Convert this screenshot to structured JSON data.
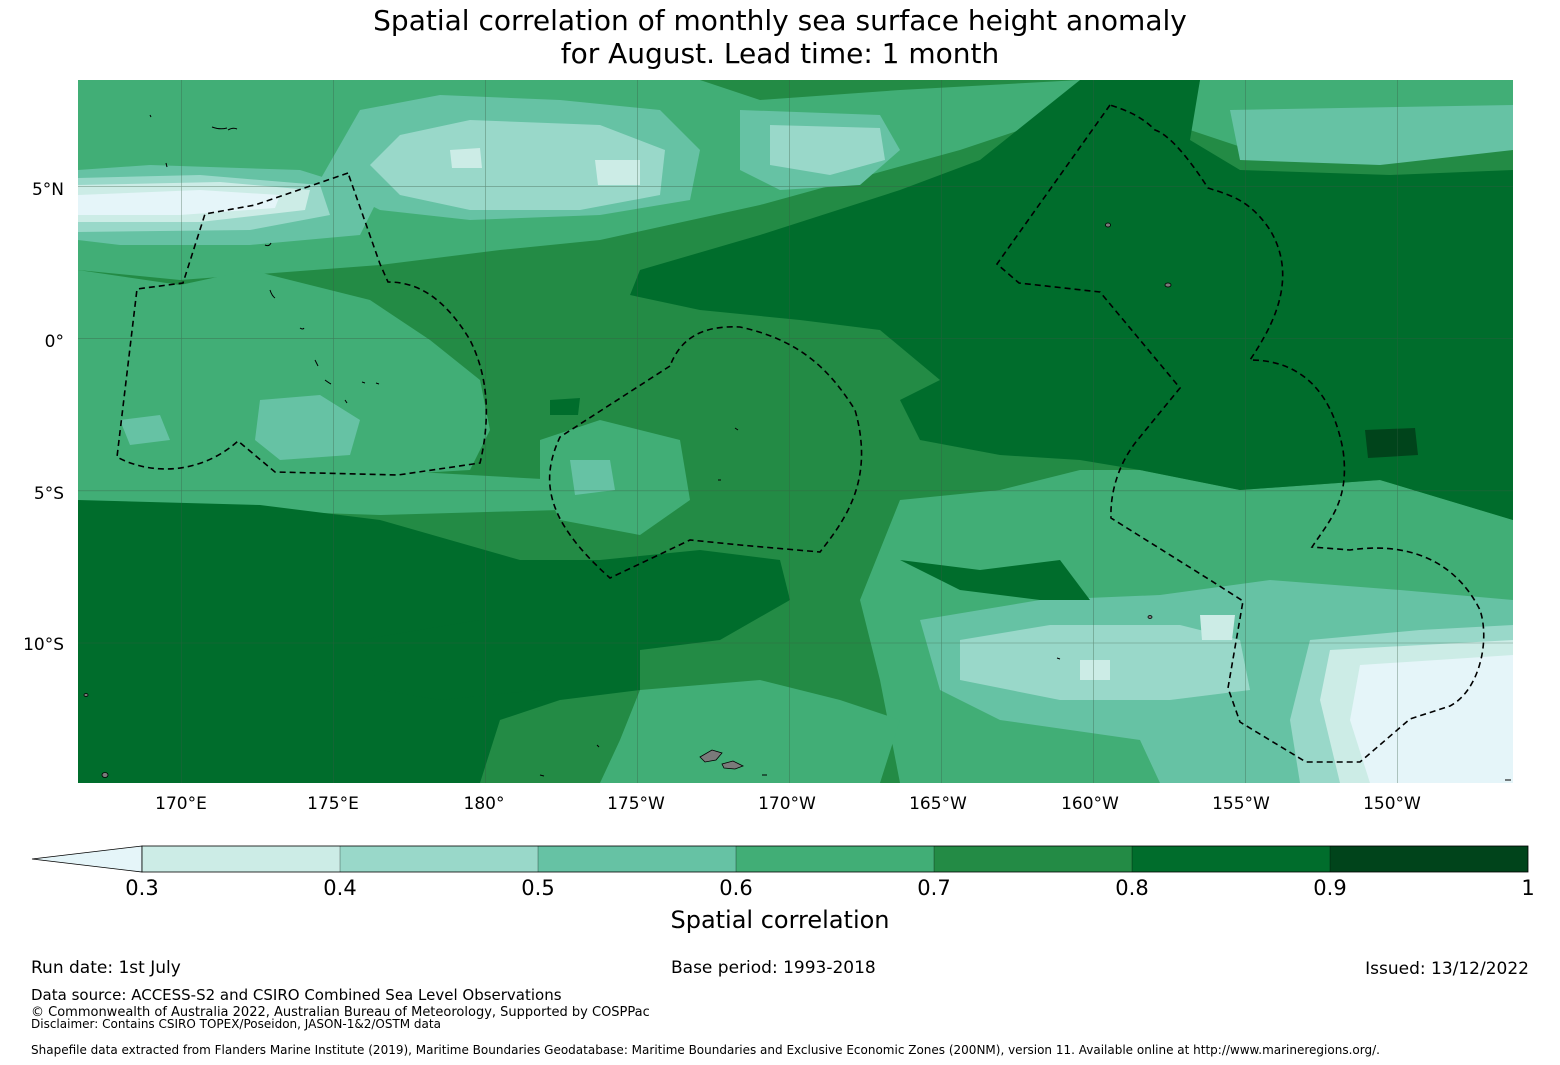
{
  "title": {
    "line1": "Spatial correlation of monthly sea surface height anomaly",
    "line2": "for August. Lead time: 1 month"
  },
  "axes": {
    "lat_labels": [
      "5°N",
      "0°",
      "5°S",
      "10°S"
    ],
    "lat_values": [
      5,
      0,
      -5,
      -10
    ],
    "lon_labels": [
      "170°E",
      "175°E",
      "180°",
      "175°W",
      "170°W",
      "165°W",
      "160°W",
      "155°W",
      "150°W"
    ],
    "lon_values": [
      170,
      175,
      180,
      185,
      190,
      195,
      200,
      205,
      210
    ],
    "lon_range": [
      166.6,
      213.8
    ],
    "lat_range": [
      -14.6,
      8.5
    ]
  },
  "colorbar": {
    "title": "Spatial correlation",
    "ticks": [
      "0.3",
      "0.4",
      "0.5",
      "0.6",
      "0.7",
      "0.8",
      "0.9",
      "1"
    ],
    "tick_values": [
      0.3,
      0.4,
      0.5,
      0.6,
      0.7,
      0.8,
      0.9,
      1.0
    ],
    "colors": [
      "#e5f5f9",
      "#ccece6",
      "#99d8c9",
      "#66c2a4",
      "#41ae76",
      "#238b45",
      "#006d2c",
      "#00441b"
    ],
    "extend": "min"
  },
  "footer": {
    "run_date": "Run date: 1st July",
    "base_period": "Base period: 1993-2018",
    "issued": "Issued: 13/12/2022",
    "data_source": "Data source: ACCESS-S2 and CSIRO Combined Sea Level Observations",
    "copyright": "© Commonwealth of Australia 2022, Australian Bureau of Meteorology, Supported by COSPPac",
    "disclaimer": "Disclaimer: Contains CSIRO TOPEX/Poseidon, JASON-1&2/OSTM data",
    "shapefile": "Shapefile data extracted from Flanders Marine Institute (2019), Maritime Boundaries Geodatabase: Maritime Boundaries and Exclusive Economic Zones (200NM), version 11. Available online at http://www.marineregions.org/."
  }
}
